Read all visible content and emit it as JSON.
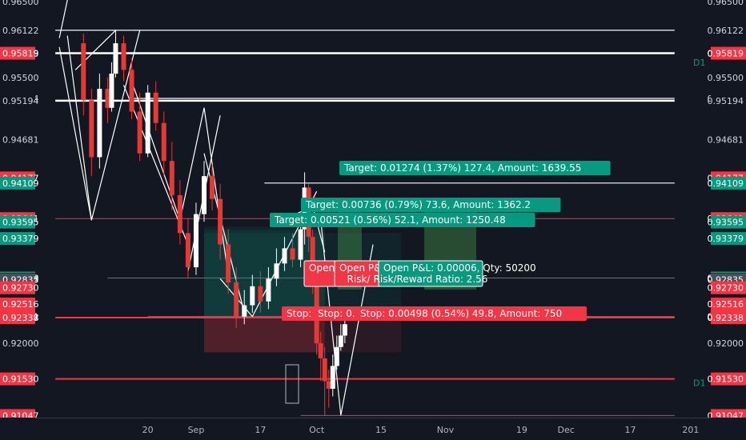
{
  "chart_data": {
    "type": "candlestick",
    "x_labels": [
      {
        "label": "20",
        "day": 20
      },
      {
        "label": "Sep",
        "day": 32
      },
      {
        "label": "17",
        "day": 48
      },
      {
        "label": "Oct",
        "day": 62
      },
      {
        "label": "15",
        "day": 78
      },
      {
        "label": "Nov",
        "day": 94
      },
      {
        "label": "19",
        "day": 113
      },
      {
        "label": "Dec",
        "day": 124
      },
      {
        "label": "17",
        "day": 140
      },
      {
        "label": "201",
        "day": 155
      }
    ],
    "ylim": [
      0.9102,
      0.9652
    ],
    "price_labels": [
      {
        "v": 0.965,
        "text": "0.96500",
        "color": "#131722"
      },
      {
        "v": 0.96122,
        "text": "0.96122",
        "color": "#131722"
      },
      {
        "v": 0.95815,
        "text": "0.95815",
        "color": "#131722"
      },
      {
        "v": 0.95819,
        "text": "0.95819",
        "color": "#f23645"
      },
      {
        "v": 0.955,
        "text": "0.95500",
        "color": "#131722"
      },
      {
        "v": 0.95224,
        "text": "0.95224",
        "color": "#131722"
      },
      {
        "v": 0.95194,
        "text": "0.95194",
        "color": "#131722"
      },
      {
        "v": 0.94681,
        "text": "0.94681",
        "color": "#131722"
      },
      {
        "v": 0.94177,
        "text": "0.94177",
        "color": "#f23645"
      },
      {
        "v": 0.94109,
        "text": "0.94109",
        "color": "#089981"
      },
      {
        "v": 0.93641,
        "text": "0.93641",
        "color": "#f23645"
      },
      {
        "v": 0.93595,
        "text": "0.93595",
        "color": "#089981"
      },
      {
        "v": 0.93379,
        "text": "0.93379",
        "color": "#089981"
      },
      {
        "v": 0.92859,
        "text": "0.92859",
        "color": "#f23645"
      },
      {
        "v": 0.92858,
        "text": "0.92858",
        "color": "#089981"
      },
      {
        "v": 0.92842,
        "text": "0.92842",
        "color": "#131722"
      },
      {
        "v": 0.92835,
        "text": "0.92835",
        "color": "#4a4e59"
      },
      {
        "v": 0.9273,
        "text": "0.92730",
        "color": "#f23645"
      },
      {
        "v": 0.92516,
        "text": "0.92516",
        "color": "#f23645"
      },
      {
        "v": 0.92351,
        "text": "0.92351",
        "color": "#f23645"
      },
      {
        "v": 0.92337,
        "text": "0.92337",
        "color": "#f23645"
      },
      {
        "v": 0.92338,
        "text": "0.92338",
        "color": "#f23645"
      },
      {
        "v": 0.92,
        "text": "0.92000",
        "color": "#131722"
      },
      {
        "v": 0.9153,
        "text": "0.91530",
        "color": "#f23645"
      },
      {
        "v": 0.91047,
        "text": "0.91047",
        "color": "#f23645"
      }
    ],
    "candles": [
      [
        4,
        0.9595,
        0.952,
        0.9608,
        0.95
      ],
      [
        6,
        0.952,
        0.9445,
        0.9535,
        0.942
      ],
      [
        8,
        0.9445,
        0.9535,
        0.9555,
        0.943
      ],
      [
        10,
        0.9535,
        0.951,
        0.955,
        0.949
      ],
      [
        11,
        0.951,
        0.9555,
        0.957,
        0.9505
      ],
      [
        12,
        0.9555,
        0.9595,
        0.9612,
        0.955
      ],
      [
        14,
        0.9595,
        0.956,
        0.9605,
        0.9545
      ],
      [
        16,
        0.956,
        0.9505,
        0.9575,
        0.9495
      ],
      [
        18,
        0.9505,
        0.945,
        0.953,
        0.944
      ],
      [
        20,
        0.945,
        0.953,
        0.954,
        0.9445
      ],
      [
        22,
        0.953,
        0.949,
        0.9545,
        0.948
      ],
      [
        24,
        0.949,
        0.944,
        0.9505,
        0.942
      ],
      [
        26,
        0.944,
        0.9395,
        0.9465,
        0.9375
      ],
      [
        28,
        0.9395,
        0.9345,
        0.9415,
        0.933
      ],
      [
        30,
        0.9345,
        0.93,
        0.9365,
        0.9285
      ],
      [
        32,
        0.93,
        0.937,
        0.9385,
        0.929
      ],
      [
        34,
        0.937,
        0.942,
        0.944,
        0.936
      ],
      [
        36,
        0.942,
        0.939,
        0.9435,
        0.9375
      ],
      [
        38,
        0.939,
        0.933,
        0.941,
        0.931
      ],
      [
        40,
        0.933,
        0.928,
        0.935,
        0.9265
      ],
      [
        42,
        0.928,
        0.9235,
        0.93,
        0.922
      ],
      [
        44,
        0.9235,
        0.925,
        0.927,
        0.9225
      ],
      [
        46,
        0.925,
        0.9275,
        0.929,
        0.924
      ],
      [
        48,
        0.9275,
        0.9255,
        0.9295,
        0.924
      ],
      [
        50,
        0.9255,
        0.9285,
        0.93,
        0.9245
      ],
      [
        52,
        0.9285,
        0.9305,
        0.9325,
        0.9275
      ],
      [
        54,
        0.9305,
        0.9325,
        0.934,
        0.9295
      ],
      [
        56,
        0.9325,
        0.931,
        0.9345,
        0.93
      ],
      [
        58,
        0.931,
        0.935,
        0.9365,
        0.93
      ],
      [
        59,
        0.935,
        0.9405,
        0.9425,
        0.933
      ],
      [
        60,
        0.9405,
        0.934,
        0.941,
        0.932
      ],
      [
        61,
        0.934,
        0.928,
        0.935,
        0.9265
      ],
      [
        62,
        0.928,
        0.92,
        0.929,
        0.9185
      ],
      [
        63,
        0.92,
        0.918,
        0.9215,
        0.915
      ],
      [
        64,
        0.918,
        0.915,
        0.9195,
        0.9105
      ],
      [
        65,
        0.915,
        0.914,
        0.9165,
        0.9115
      ],
      [
        66,
        0.914,
        0.917,
        0.9185,
        0.913
      ],
      [
        67,
        0.917,
        0.9195,
        0.921,
        0.9165
      ],
      [
        68,
        0.9195,
        0.921,
        0.9225,
        0.919
      ],
      [
        69,
        0.921,
        0.9225,
        0.924,
        0.92
      ]
    ],
    "positions": [
      {
        "id": "pos1",
        "entry": 0.92337,
        "x1": 34,
        "x2": 83,
        "target_text": "Target: 0.01274 (1.37%) 127.4, Amount: 1639.55",
        "stop_text": "Stop: 0.00498 (0.54%) 49.8, Amount: 750",
        "pl_title": "Open P&L: 0.00006, Qty: 50200",
        "pl_sub": "Risk/Reward Ratio: 2.56"
      },
      {
        "id": "pos2",
        "entry": 0.92337,
        "x1": 34,
        "x2": 64,
        "target_text": "Target: 0.00736 (0.79%) 73.6, Amount: 1362.2",
        "stop_text": "Stop: 0.0",
        "pl_title": "Open P&L",
        "pl_sub": "Risk/"
      },
      {
        "id": "pos3",
        "entry": 0.92337,
        "x1": 34,
        "x2": 64,
        "target_text": "Target: 0.00521 (0.56%) 52.1, Amount: 1250.48",
        "stop_text": "Stop:",
        "pl_title": "Open",
        "pl_sub": ""
      }
    ],
    "hlines": [
      {
        "v": 0.96122,
        "color": "#d1d4dc",
        "x1": -3,
        "x2": 151,
        "w": 1.5
      },
      {
        "v": 0.95819,
        "color": "#ffffff",
        "x1": -3,
        "x2": 151,
        "w": 2.5
      },
      {
        "v": 0.95194,
        "color": "#ffffff",
        "x1": -3,
        "x2": 151,
        "w": 2.5
      },
      {
        "v": 0.95224,
        "color": "#d1d4dc",
        "x1": 16,
        "x2": 151,
        "w": 1.5
      },
      {
        "v": 0.94109,
        "color": "#ffffff",
        "x1": 49,
        "x2": 151,
        "w": 1.2
      },
      {
        "v": 0.93641,
        "color": "#f23645",
        "x1": -3,
        "x2": 151,
        "w": 1
      },
      {
        "v": 0.92859,
        "color": "#f23645",
        "x1": 10,
        "x2": 151,
        "w": 1
      },
      {
        "v": 0.92351,
        "color": "#f23645",
        "x1": 20,
        "x2": 151,
        "w": 1
      },
      {
        "v": 0.92337,
        "color": "#f23645",
        "x1": -3,
        "x2": 151,
        "w": 2
      },
      {
        "v": 0.9153,
        "color": "#f23645",
        "x1": -3,
        "x2": 151,
        "w": 2
      },
      {
        "v": 0.91047,
        "color": "#f23645",
        "x1": 58,
        "x2": 151,
        "w": 1
      }
    ],
    "trendlines": [
      [
        [
          0,
          0.9652
        ],
        [
          -2,
          0.9602
        ]
      ],
      [
        [
          0,
          0.9605
        ],
        [
          6,
          0.9362
        ]
      ],
      [
        [
          -2,
          0.959
        ],
        [
          6,
          0.9362
        ]
      ],
      [
        [
          6,
          0.9362
        ],
        [
          18,
          0.9612
        ]
      ],
      [
        [
          2,
          0.956
        ],
        [
          12,
          0.9612
        ]
      ],
      [
        [
          16,
          0.9545
        ],
        [
          28,
          0.9362
        ]
      ],
      [
        [
          14,
          0.954
        ],
        [
          30,
          0.933
        ]
      ],
      [
        [
          28,
          0.9362
        ],
        [
          34,
          0.951
        ]
      ],
      [
        [
          34,
          0.951
        ],
        [
          40,
          0.929
        ]
      ],
      [
        [
          30,
          0.9295
        ],
        [
          38,
          0.95
        ]
      ],
      [
        [
          34,
          0.945
        ],
        [
          44,
          0.924
        ]
      ],
      [
        [
          38,
          0.9285
        ],
        [
          46,
          0.9235
        ]
      ],
      [
        [
          46,
          0.9235
        ],
        [
          62,
          0.94
        ]
      ],
      [
        [
          52,
          0.936
        ],
        [
          66,
          0.939
        ]
      ],
      [
        [
          60,
          0.94
        ],
        [
          64,
          0.932
        ]
      ],
      [
        [
          63,
          0.9362
        ],
        [
          68,
          0.9105
        ]
      ],
      [
        [
          68,
          0.9105
        ],
        [
          76,
          0.933
        ]
      ]
    ],
    "markers": [
      {
        "text": "D1",
        "v": 0.957
      },
      {
        "text": "D1",
        "v": 0.9148
      }
    ]
  }
}
